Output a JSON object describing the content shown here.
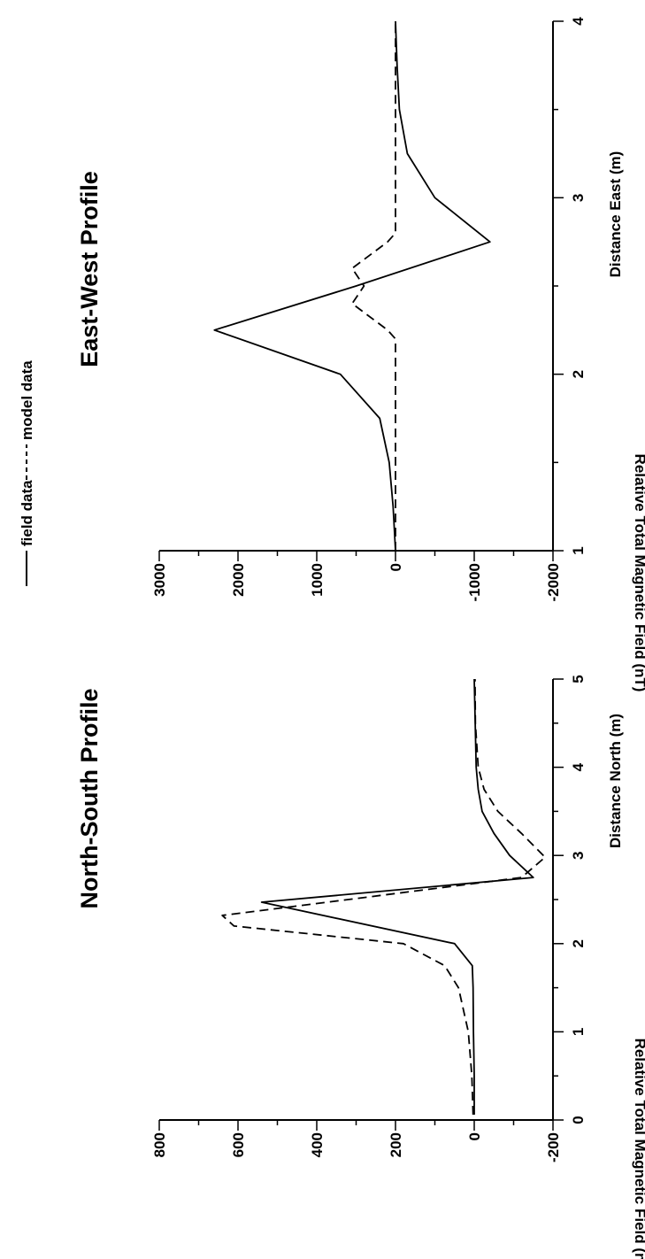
{
  "legend": {
    "field_label": "field data",
    "model_label": "model data",
    "placement": "top-center",
    "field_style": "solid",
    "model_style": "dashed"
  },
  "chart_data": [
    {
      "type": "line",
      "title": "North-South Profile",
      "xlabel": "Distance North (m)",
      "ylabel": "Relative Total Magnetic Field (nT)",
      "xlim": [
        0,
        5
      ],
      "ylim": [
        -200,
        800
      ],
      "x_ticks": [
        0,
        1,
        2,
        3,
        4,
        5
      ],
      "y_ticks": [
        -200,
        0,
        200,
        400,
        600,
        800
      ],
      "x_minor_step": 0.5,
      "y_minor_step": 100,
      "grid": false,
      "series": [
        {
          "name": "field data",
          "style": "solid",
          "points": [
            [
              0.06,
              0
            ],
            [
              0.5,
              0
            ],
            [
              1.0,
              2
            ],
            [
              1.5,
              3
            ],
            [
              1.75,
              5
            ],
            [
              2.0,
              50
            ],
            [
              2.47,
              540
            ],
            [
              2.75,
              -150
            ],
            [
              3.0,
              -90
            ],
            [
              3.25,
              -50
            ],
            [
              3.5,
              -20
            ],
            [
              3.75,
              -10
            ],
            [
              4.0,
              -5
            ],
            [
              5.0,
              0
            ]
          ]
        },
        {
          "name": "model data",
          "style": "dashed",
          "points": [
            [
              0.06,
              3
            ],
            [
              0.5,
              6
            ],
            [
              1.0,
              15
            ],
            [
              1.5,
              40
            ],
            [
              1.75,
              75
            ],
            [
              2.0,
              180
            ],
            [
              2.2,
              610
            ],
            [
              2.32,
              640
            ],
            [
              2.5,
              320
            ],
            [
              2.75,
              -120
            ],
            [
              2.98,
              -180
            ],
            [
              3.25,
              -120
            ],
            [
              3.5,
              -60
            ],
            [
              3.75,
              -25
            ],
            [
              4.0,
              -10
            ],
            [
              4.5,
              -3
            ],
            [
              5.0,
              -2
            ]
          ]
        }
      ]
    },
    {
      "type": "line",
      "title": "East-West Profile",
      "xlabel": "Distance East (m)",
      "ylabel": "Relative Total Magnetic Field (nT)",
      "xlim": [
        1,
        4
      ],
      "ylim": [
        -2000,
        3000
      ],
      "x_ticks": [
        1,
        2,
        3,
        4
      ],
      "y_ticks": [
        -2000,
        -1000,
        0,
        1000,
        2000,
        3000
      ],
      "x_minor_step": 0.5,
      "y_minor_step": 500,
      "grid": false,
      "series": [
        {
          "name": "field data",
          "style": "solid",
          "points": [
            [
              1.0,
              0
            ],
            [
              1.25,
              30
            ],
            [
              1.5,
              80
            ],
            [
              1.75,
              200
            ],
            [
              2.0,
              700
            ],
            [
              2.25,
              2300
            ],
            [
              2.5,
              500
            ],
            [
              2.75,
              -1200
            ],
            [
              3.0,
              -500
            ],
            [
              3.25,
              -150
            ],
            [
              3.5,
              -50
            ],
            [
              3.75,
              -20
            ],
            [
              4.0,
              0
            ]
          ]
        },
        {
          "name": "model data",
          "style": "dashed",
          "points": [
            [
              1.0,
              0
            ],
            [
              1.5,
              0
            ],
            [
              2.0,
              0
            ],
            [
              2.2,
              0
            ],
            [
              2.25,
              100
            ],
            [
              2.4,
              550
            ],
            [
              2.5,
              400
            ],
            [
              2.6,
              550
            ],
            [
              2.75,
              100
            ],
            [
              2.8,
              0
            ],
            [
              3.0,
              0
            ],
            [
              4.0,
              0
            ]
          ]
        }
      ]
    }
  ]
}
